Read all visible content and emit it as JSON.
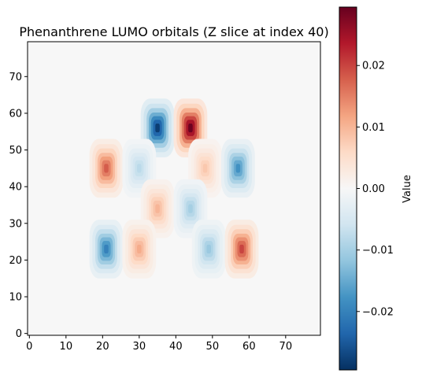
{
  "chart_data": {
    "type": "heatmap",
    "title": "Phenanthrene LUMO orbitals (Z slice at index 40)",
    "xlabel": "",
    "ylabel": "",
    "xlim": [
      -0.5,
      79.5
    ],
    "ylim": [
      -0.5,
      79.5
    ],
    "x_ticks": [
      0,
      10,
      20,
      30,
      40,
      50,
      60,
      70
    ],
    "y_ticks": [
      0,
      10,
      20,
      30,
      40,
      50,
      60,
      70
    ],
    "colormap": "RdBu_r",
    "grid": false,
    "colorbar": {
      "label": "Value",
      "vmin": -0.0295,
      "vmax": 0.0295,
      "ticks": [
        0.02,
        0.01,
        0.0,
        -0.01,
        -0.02
      ],
      "tick_labels": [
        "0.02",
        "0.01",
        "0.00",
        "−0.01",
        "−0.02"
      ]
    },
    "lobes": [
      {
        "x": 35,
        "y": 56,
        "value": -0.028
      },
      {
        "x": 44,
        "y": 56,
        "value": 0.029
      },
      {
        "x": 21,
        "y": 45,
        "value": 0.018
      },
      {
        "x": 30,
        "y": 45,
        "value": -0.008
      },
      {
        "x": 48,
        "y": 45,
        "value": 0.008
      },
      {
        "x": 57,
        "y": 45,
        "value": -0.018
      },
      {
        "x": 35,
        "y": 34,
        "value": 0.01
      },
      {
        "x": 44,
        "y": 34,
        "value": -0.01
      },
      {
        "x": 21,
        "y": 23,
        "value": -0.02
      },
      {
        "x": 30,
        "y": 23,
        "value": 0.011
      },
      {
        "x": 49,
        "y": 23,
        "value": -0.011
      },
      {
        "x": 58,
        "y": 23,
        "value": 0.02
      }
    ]
  }
}
